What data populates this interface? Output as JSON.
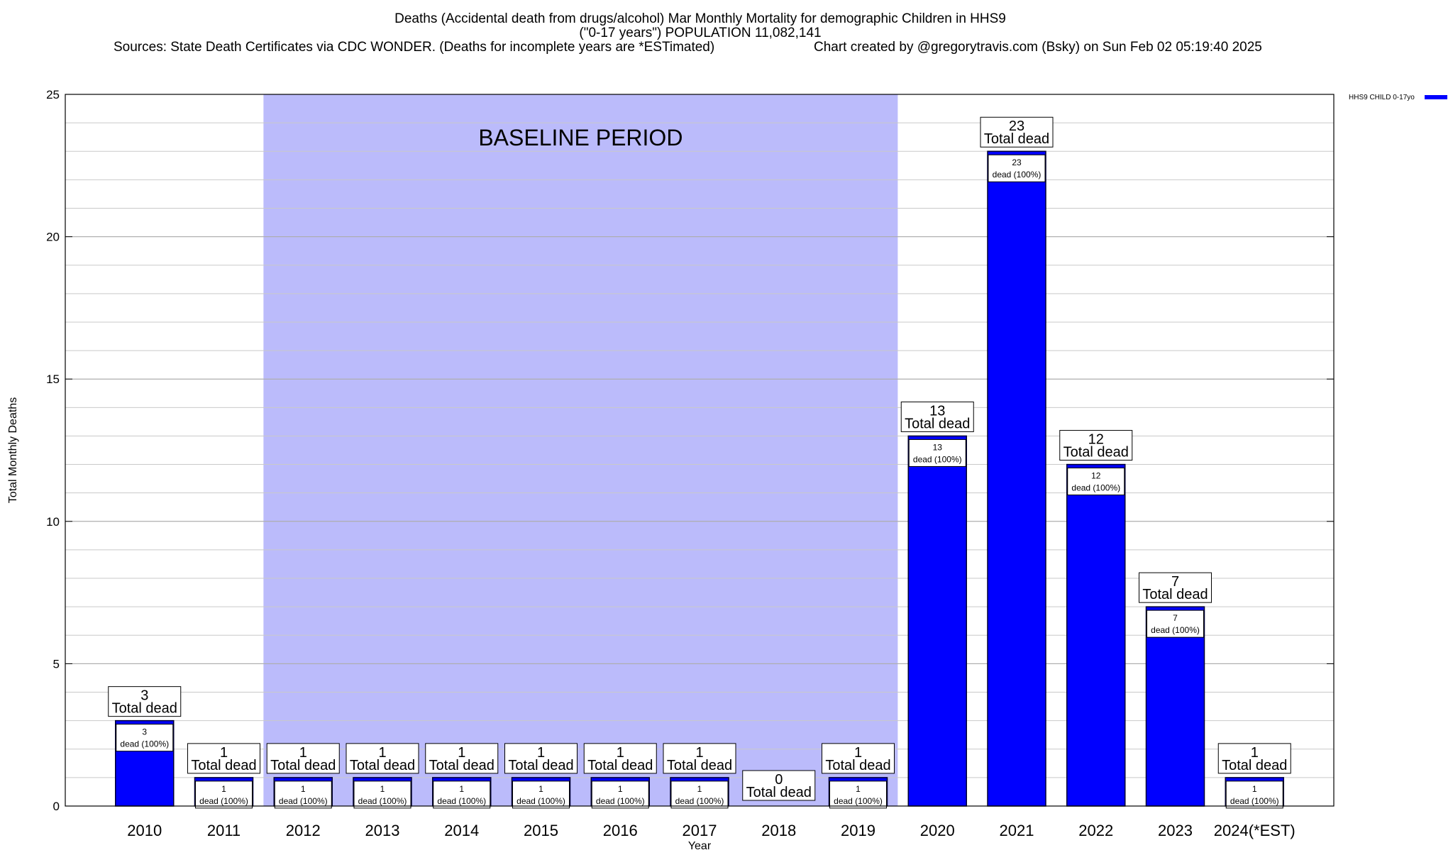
{
  "chart_data": {
    "type": "bar",
    "title_lines": [
      "Deaths (Accidental death from drugs/alcohol) Mar Monthly Mortality for demographic Children in HHS9",
      "(\"0-17 years\") POPULATION 11,082,141"
    ],
    "sources": "Sources: State Death Certificates via CDC WONDER. (Deaths for incomplete years are *ESTimated)",
    "credit": "Chart created by @gregorytravis.com (Bsky) on Sun Feb 02 05:19:40 2025",
    "xlabel": "Year",
    "ylabel": "Total Monthly Deaths",
    "ylim": [
      0,
      25
    ],
    "yticks": [
      0,
      5,
      10,
      15,
      20,
      25
    ],
    "grid": true,
    "legend": {
      "position": "top-right",
      "label": "HHS9 CHILD 0-17yo"
    },
    "categories": [
      "2010",
      "2011",
      "2012",
      "2013",
      "2014",
      "2015",
      "2016",
      "2017",
      "2018",
      "2019",
      "2020",
      "2021",
      "2022",
      "2023",
      "2024(*EST)"
    ],
    "series": [
      {
        "name": "HHS9 CHILD 0-17yo",
        "color": "#0000ff",
        "values": [
          3,
          1,
          1,
          1,
          1,
          1,
          1,
          1,
          0,
          1,
          13,
          23,
          12,
          7,
          1
        ]
      }
    ],
    "total_label_suffix": "Total dead",
    "bar_label_suffix": "dead (100%)",
    "baseline": {
      "label": "BASELINE PERIOD",
      "start": "2012",
      "end": "2019",
      "color": "#bbbbfb"
    }
  }
}
